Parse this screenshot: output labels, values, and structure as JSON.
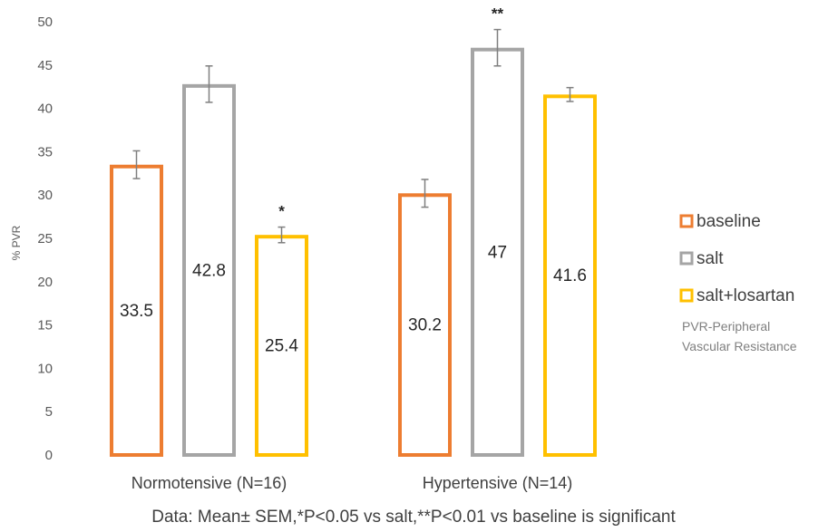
{
  "chart_data": {
    "type": "bar",
    "ylabel": "% PVR",
    "ylim": [
      0,
      50
    ],
    "yticks": [
      0,
      5,
      10,
      15,
      20,
      25,
      30,
      35,
      40,
      45,
      50
    ],
    "categories": [
      "Normotensive (N=16)",
      "Hypertensive (N=14)"
    ],
    "series": [
      {
        "name": "baseline",
        "color": "#ED7D31",
        "values": [
          33.5,
          30.2
        ],
        "labels": [
          "33.5",
          "30.2"
        ],
        "errors": [
          1.6,
          1.6
        ]
      },
      {
        "name": "salt",
        "color": "#A5A5A5",
        "values": [
          42.8,
          47
        ],
        "labels": [
          "42.8",
          "47"
        ],
        "errors": [
          2.1,
          2.1
        ]
      },
      {
        "name": "salt+losartan",
        "color": "#FFC000",
        "values": [
          25.4,
          41.6
        ],
        "labels": [
          "25.4",
          "41.6"
        ],
        "errors": [
          0.9,
          0.8
        ]
      }
    ],
    "annotations": [
      {
        "text": "*",
        "category": 0,
        "series": 2
      },
      {
        "text": "**",
        "category": 1,
        "series": 1
      }
    ],
    "legend_position": "right",
    "legend_note": [
      "PVR-Peripheral",
      "Vascular Resistance"
    ],
    "footnote": "Data: Mean± SEM,*P<0.05 vs salt,**P<0.01 vs baseline is significant",
    "grid": false
  }
}
